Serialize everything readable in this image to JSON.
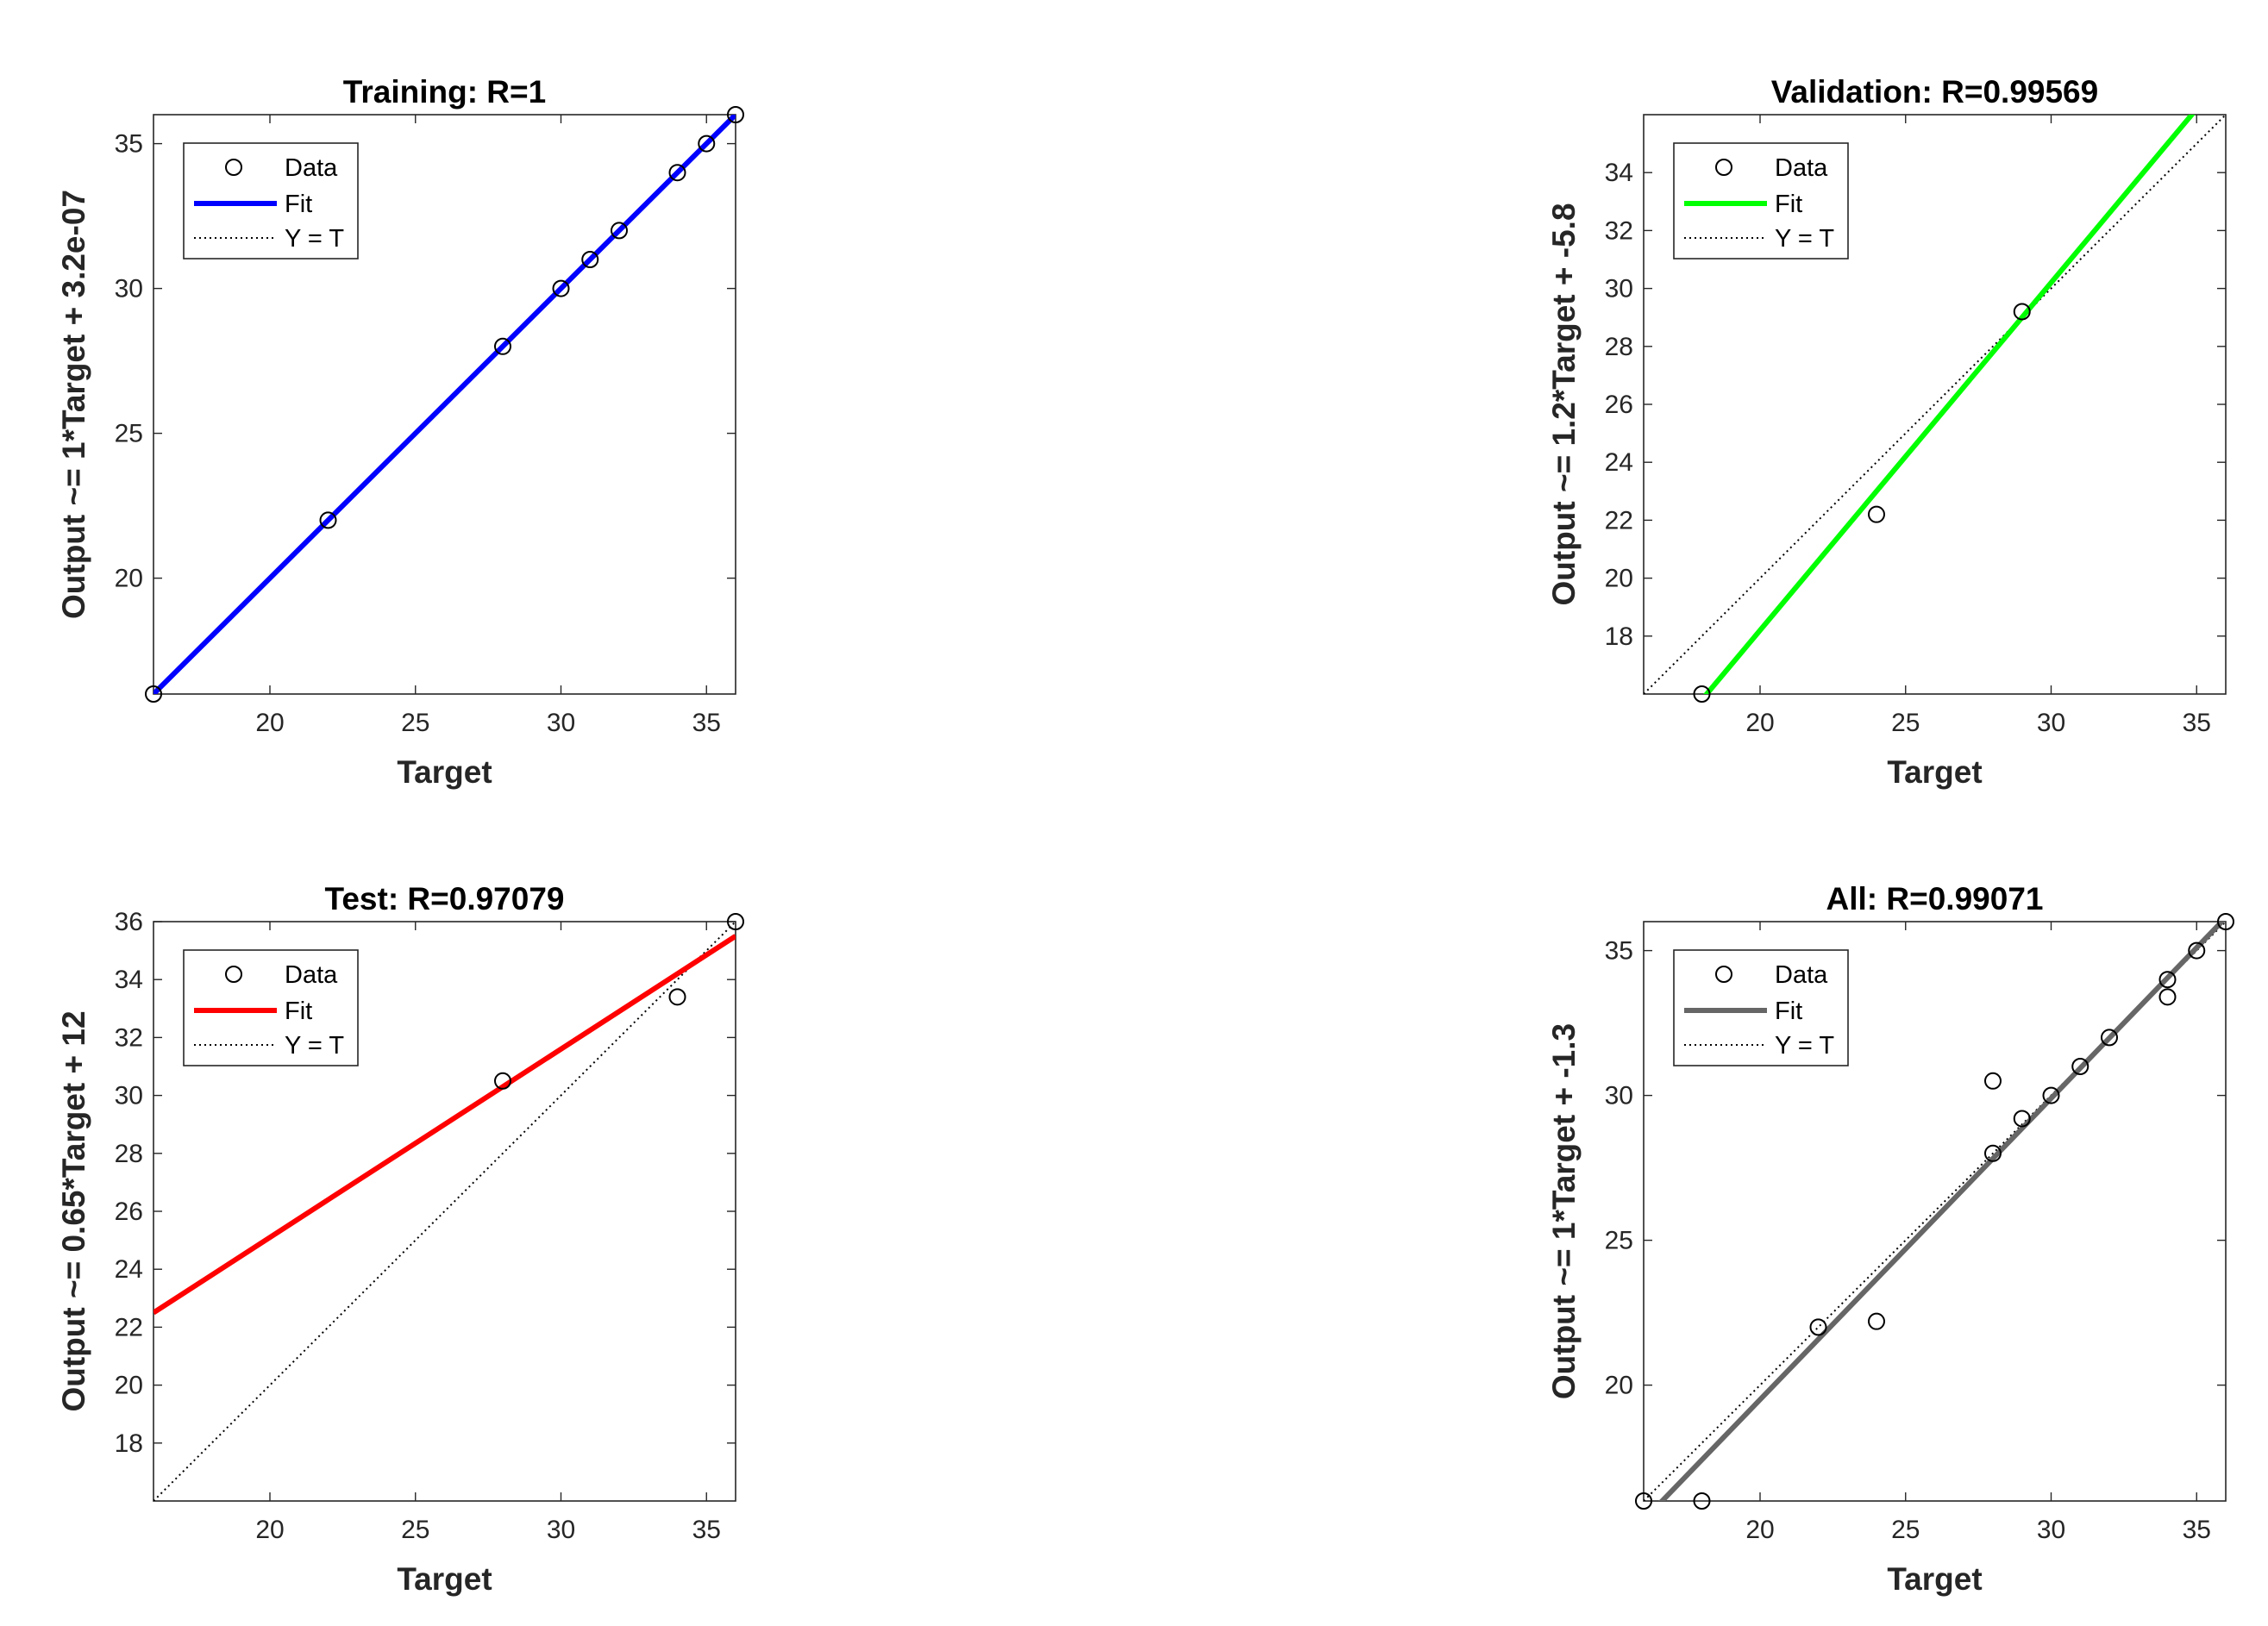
{
  "chart_data": [
    {
      "type": "scatter",
      "title": "Training: R=1",
      "xlabel": "Target",
      "ylabel": "Output ~= 1*Target + 3.2e-07",
      "xlim": [
        16,
        36
      ],
      "ylim": [
        16,
        36
      ],
      "xticks": [
        20,
        25,
        30,
        35
      ],
      "yticks": [
        20,
        25,
        30,
        35
      ],
      "fit_color": "#0000ff",
      "fit": {
        "slope": 1,
        "intercept": 0
      },
      "points": [
        [
          16,
          16
        ],
        [
          22,
          22
        ],
        [
          28,
          28
        ],
        [
          30,
          30
        ],
        [
          31,
          31
        ],
        [
          32,
          32
        ],
        [
          34,
          34
        ],
        [
          35,
          35
        ],
        [
          36,
          36
        ]
      ],
      "legend": {
        "position": "top-left",
        "entries": [
          "Data",
          "Fit",
          "Y = T"
        ]
      }
    },
    {
      "type": "scatter",
      "title": "Validation: R=0.99569",
      "xlabel": "Target",
      "ylabel": "Output ~= 1.2*Target + -5.8",
      "xlim": [
        16,
        36
      ],
      "ylim": [
        16,
        36
      ],
      "xticks": [
        20,
        25,
        30,
        35
      ],
      "yticks": [
        18,
        20,
        22,
        24,
        26,
        28,
        30,
        32,
        34
      ],
      "fit_color": "#00ff00",
      "fit": {
        "slope": 1.2,
        "intercept": -5.8
      },
      "points": [
        [
          18,
          16
        ],
        [
          24,
          22.2
        ],
        [
          29,
          29.2
        ]
      ],
      "legend": {
        "position": "top-left",
        "entries": [
          "Data",
          "Fit",
          "Y = T"
        ]
      }
    },
    {
      "type": "scatter",
      "title": "Test: R=0.97079",
      "xlabel": "Target",
      "ylabel": "Output ~= 0.65*Target + 12",
      "xlim": [
        16,
        36
      ],
      "ylim": [
        16,
        36
      ],
      "xticks": [
        20,
        25,
        30,
        35
      ],
      "yticks": [
        18,
        20,
        22,
        24,
        26,
        28,
        30,
        32,
        34,
        36
      ],
      "fit_color": "#ff0000",
      "fit": {
        "slope": 0.65,
        "intercept": 12.1
      },
      "points": [
        [
          28,
          30.5
        ],
        [
          34,
          33.4
        ],
        [
          36,
          36
        ]
      ],
      "legend": {
        "position": "top-left",
        "entries": [
          "Data",
          "Fit",
          "Y = T"
        ]
      }
    },
    {
      "type": "scatter",
      "title": "All: R=0.99071",
      "xlabel": "Target",
      "ylabel": "Output ~= 1*Target + -1.3",
      "xlim": [
        16,
        36
      ],
      "ylim": [
        16,
        36
      ],
      "xticks": [
        20,
        25,
        30,
        35
      ],
      "yticks": [
        20,
        25,
        30,
        35
      ],
      "fit_color": "#666666",
      "fit": {
        "slope": 1.04,
        "intercept": -1.3
      },
      "points": [
        [
          16,
          16
        ],
        [
          18,
          16
        ],
        [
          22,
          22
        ],
        [
          24,
          22.2
        ],
        [
          28,
          28
        ],
        [
          28,
          30.5
        ],
        [
          29,
          29.2
        ],
        [
          30,
          30
        ],
        [
          31,
          31
        ],
        [
          32,
          32
        ],
        [
          34,
          34
        ],
        [
          34,
          33.4
        ],
        [
          35,
          35
        ],
        [
          36,
          36
        ]
      ],
      "legend": {
        "position": "top-left",
        "entries": [
          "Data",
          "Fit",
          "Y = T"
        ]
      }
    }
  ]
}
